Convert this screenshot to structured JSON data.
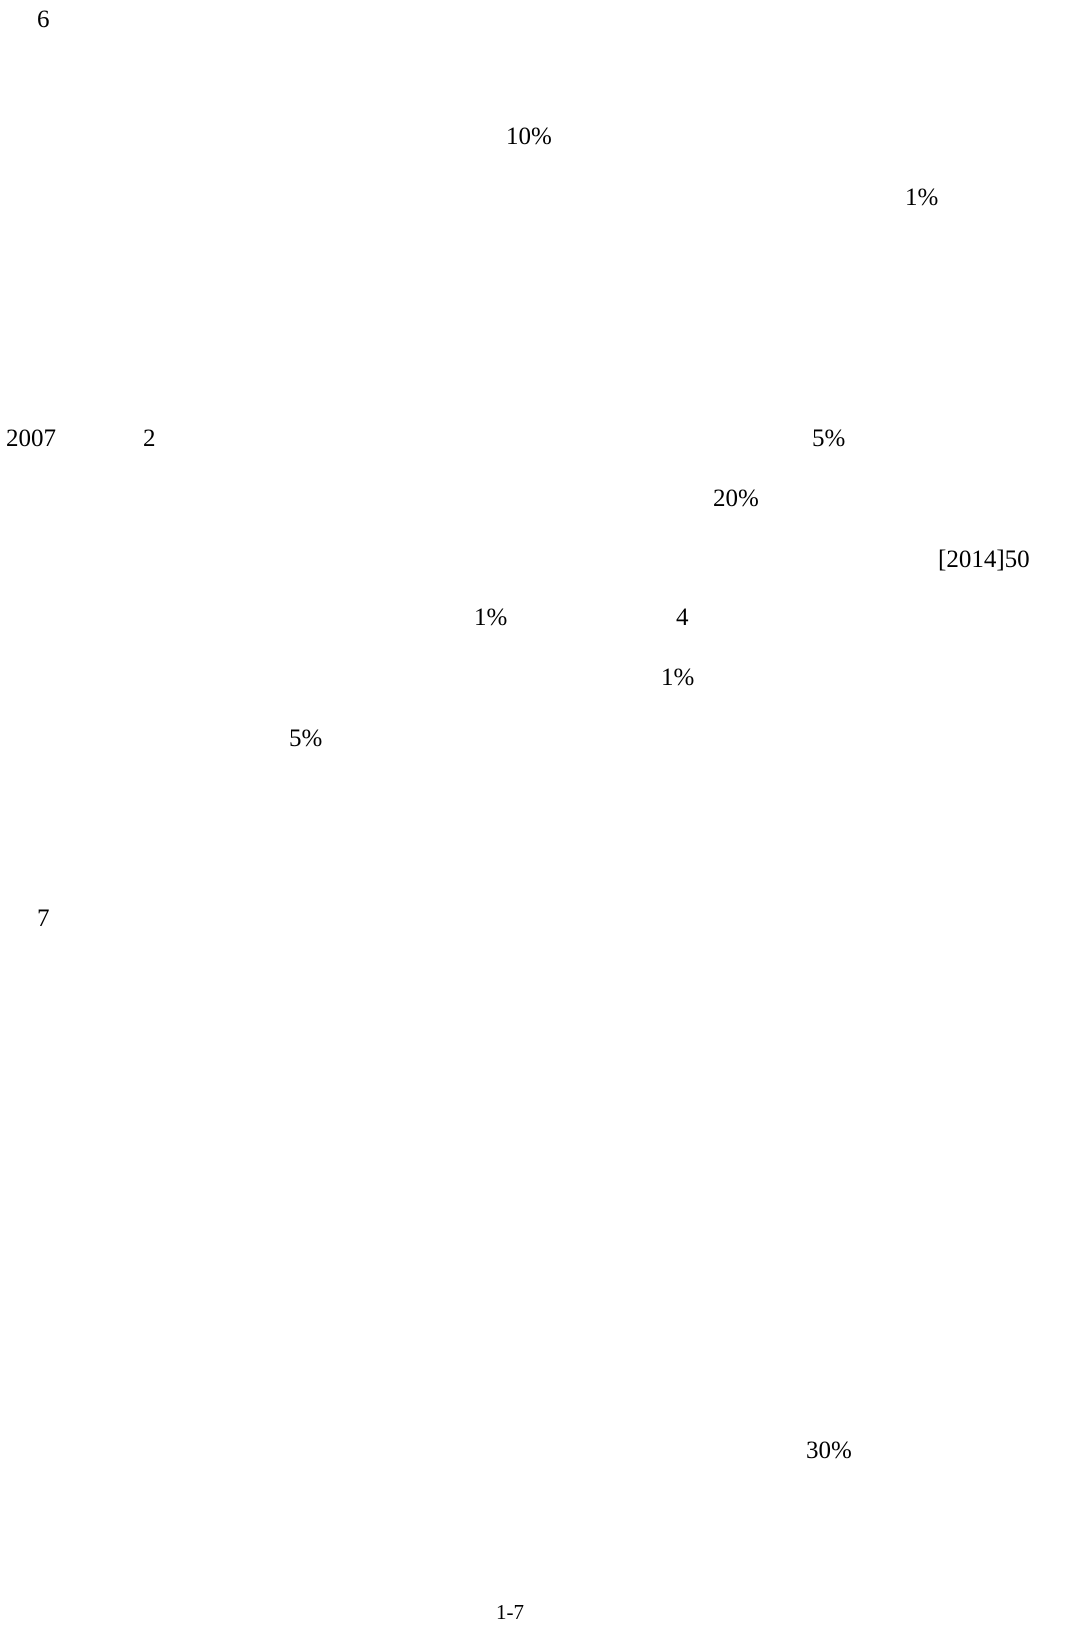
{
  "document": {
    "section_6": "6",
    "line_10_pct": "10%",
    "line_1_pct_a": "1%",
    "year_2007": "2007",
    "num_2": "2",
    "line_5_pct_a": "5%",
    "line_20_pct": "20%",
    "ref_2014_50": "[2014]50",
    "line_1_pct_b": "1%",
    "num_4": "4",
    "line_1_pct_c": "1%",
    "line_5_pct_b": "5%",
    "section_7": "7",
    "line_30_pct": "30%"
  },
  "footer": {
    "page_number": "1-7"
  }
}
